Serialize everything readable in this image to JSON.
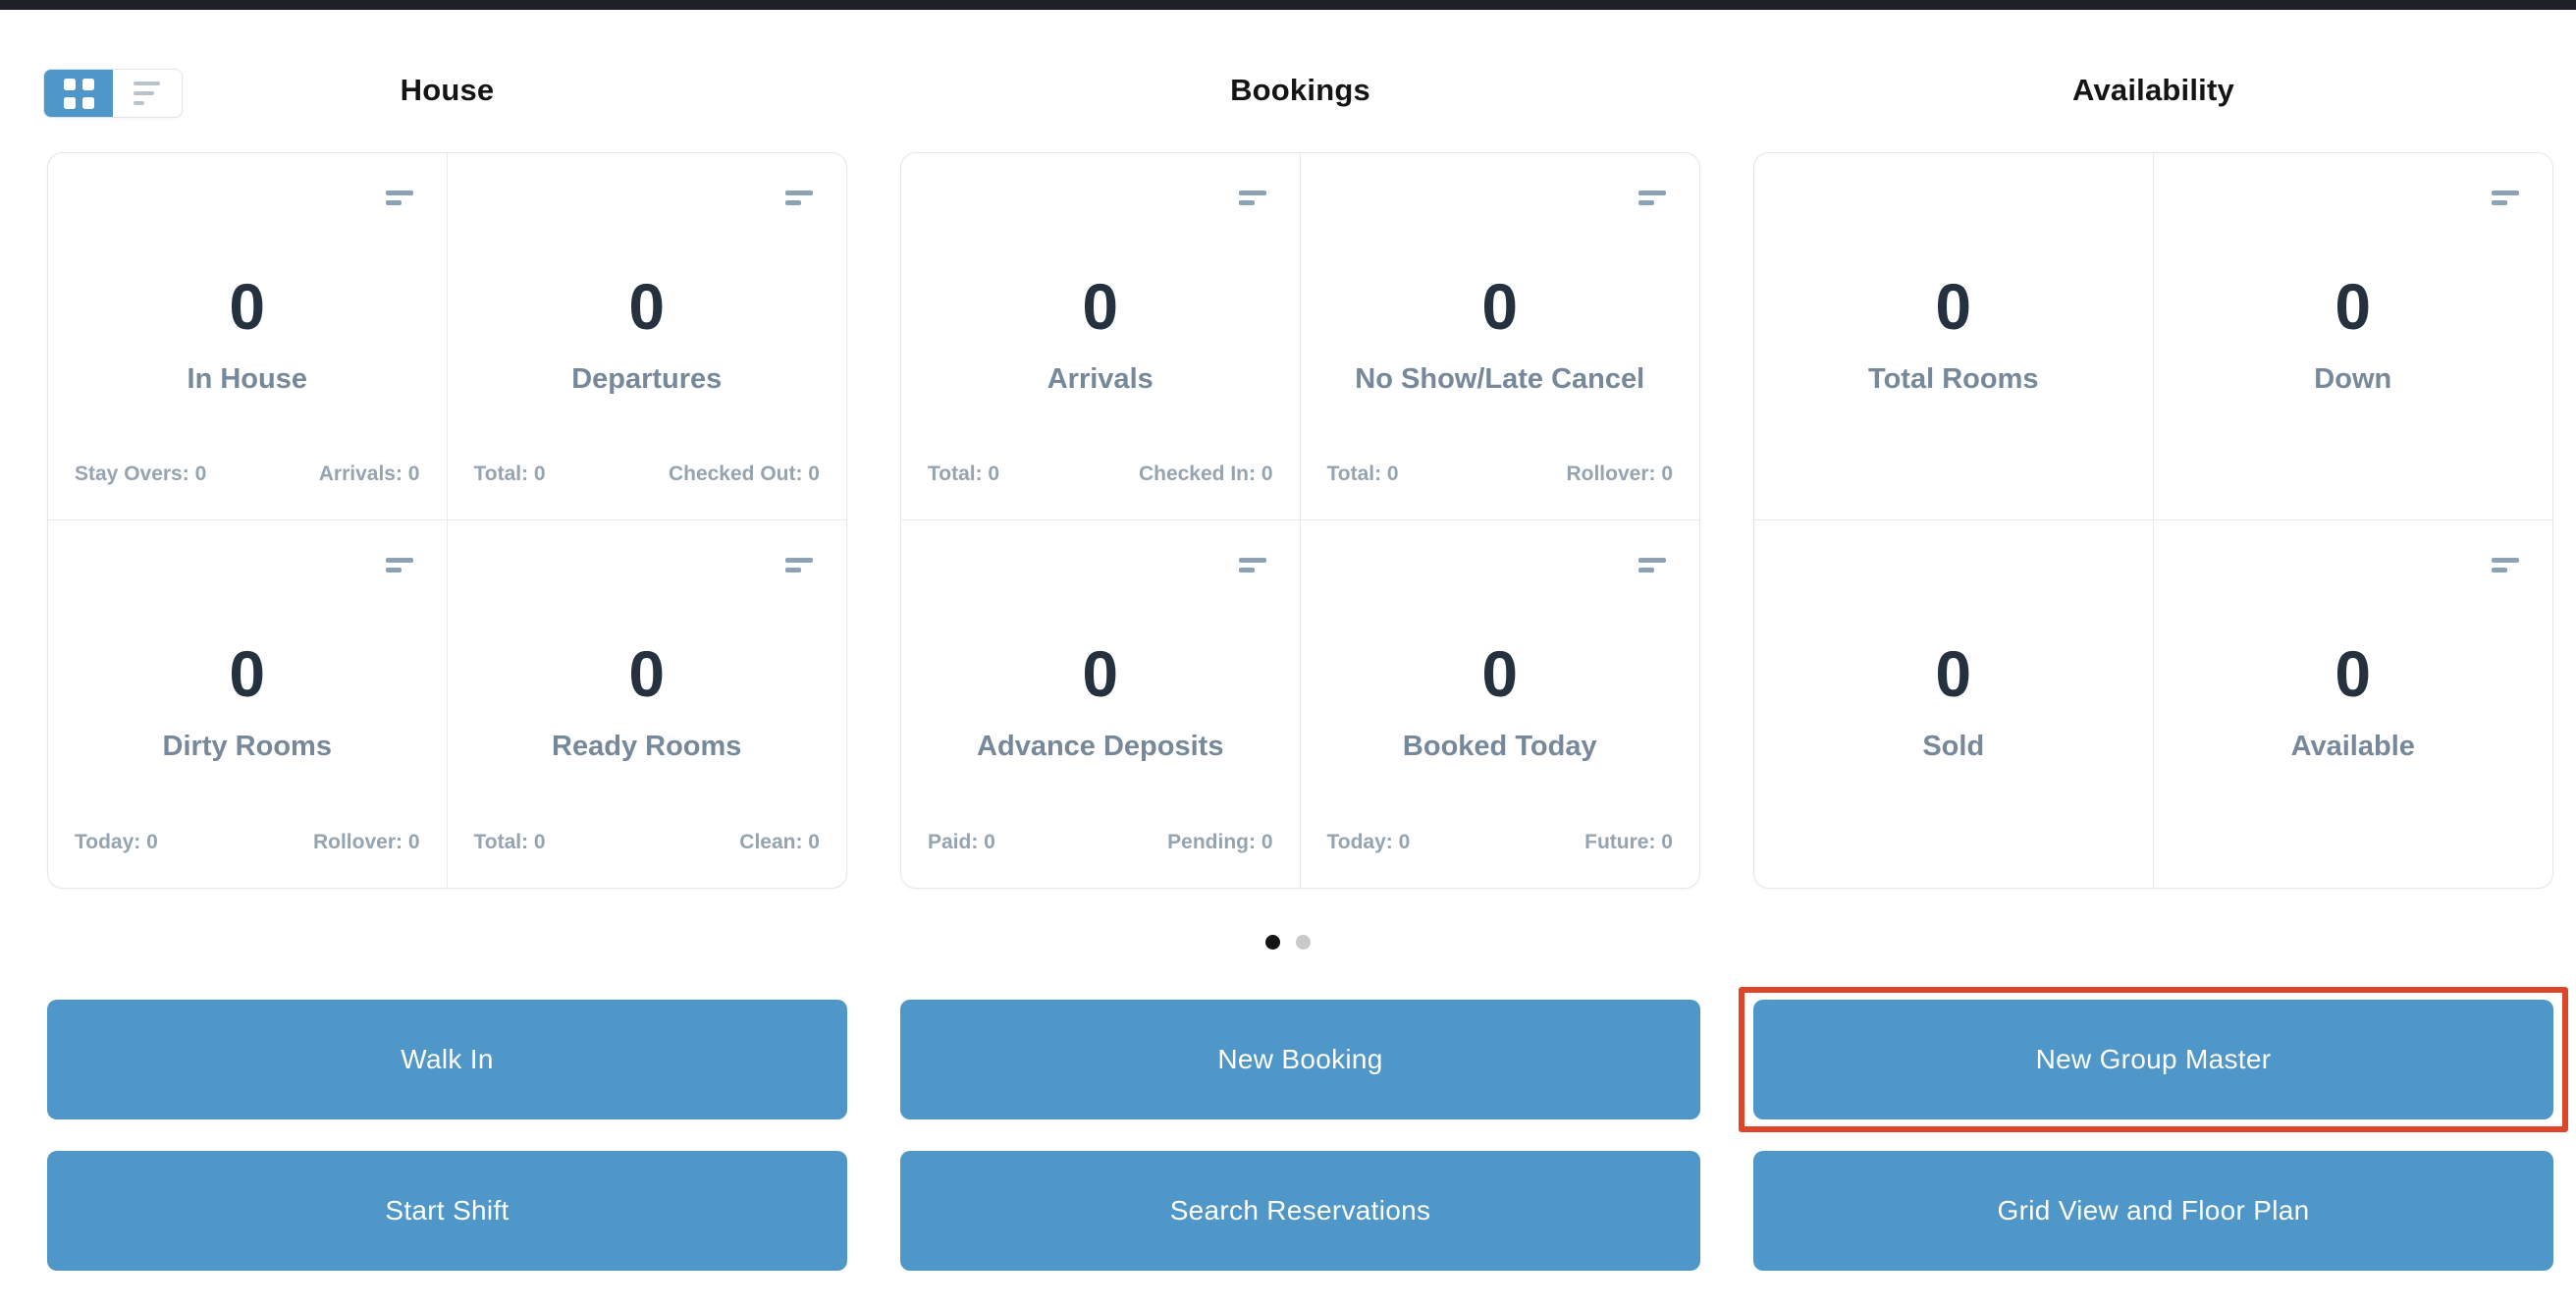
{
  "view_toggle": {
    "active": "grid",
    "grid_icon": "grid-2x2-squares",
    "list_icon": "three-lines"
  },
  "card_menu_icon": "two-horizontal-bars",
  "sections": [
    {
      "title": "House",
      "cards": [
        {
          "value": "0",
          "label": "In House",
          "footer_left": "Stay Overs: 0",
          "footer_right": "Arrivals: 0"
        },
        {
          "value": "0",
          "label": "Departures",
          "footer_left": "Total: 0",
          "footer_right": "Checked Out: 0"
        },
        {
          "value": "0",
          "label": "Dirty Rooms",
          "footer_left": "Today: 0",
          "footer_right": "Rollover: 0"
        },
        {
          "value": "0",
          "label": "Ready Rooms",
          "footer_left": "Total: 0",
          "footer_right": "Clean: 0"
        }
      ]
    },
    {
      "title": "Bookings",
      "cards": [
        {
          "value": "0",
          "label": "Arrivals",
          "footer_left": "Total: 0",
          "footer_right": "Checked In: 0"
        },
        {
          "value": "0",
          "label": "No Show/Late Cancel",
          "footer_left": "Total: 0",
          "footer_right": "Rollover: 0"
        },
        {
          "value": "0",
          "label": "Advance Deposits",
          "footer_left": "Paid: 0",
          "footer_right": "Pending: 0"
        },
        {
          "value": "0",
          "label": "Booked Today",
          "footer_left": "Today: 0",
          "footer_right": "Future: 0"
        }
      ]
    },
    {
      "title": "Availability",
      "cards": [
        {
          "value": "0",
          "label": "Total Rooms"
        },
        {
          "value": "0",
          "label": "Down"
        },
        {
          "value": "0",
          "label": "Sold"
        },
        {
          "value": "0",
          "label": "Available"
        }
      ]
    }
  ],
  "pagination": {
    "count": 2,
    "active_index": 0
  },
  "buttons": [
    {
      "label": "Walk In"
    },
    {
      "label": "New Booking"
    },
    {
      "label": "New Group Master",
      "highlighted": true
    },
    {
      "label": "Start Shift"
    },
    {
      "label": "Search Reservations"
    },
    {
      "label": "Grid View and Floor Plan"
    }
  ],
  "colors": {
    "accent_blue": "#4f97c9",
    "highlight_red": "#df452b",
    "number_text": "#25313e",
    "label_text": "#76889a",
    "footer_text": "#95a4b0",
    "top_bar": "#1e2126",
    "panel_border": "#e3e7eb",
    "dot_active": "#141414",
    "dot_inactive": "#c9c9c9"
  }
}
